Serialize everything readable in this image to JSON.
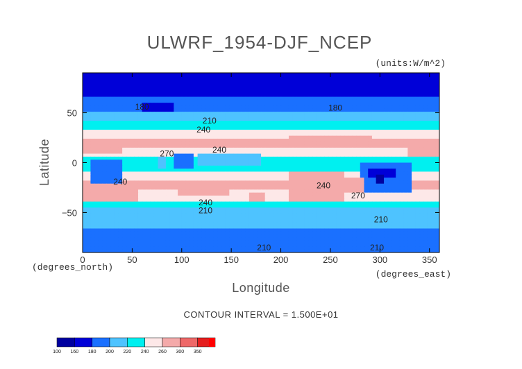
{
  "chart_data": {
    "type": "heatmap",
    "title": "ULWRF_1954-DJF_NCEP",
    "units": "(units:W/m^2)",
    "xlabel": "Longitude",
    "ylabel": "Latitude",
    "xlabel_note": "(degrees_east)",
    "ylabel_note": "(degrees_north)",
    "xlim": [
      0,
      360
    ],
    "ylim": [
      -90,
      90
    ],
    "x_ticks": [
      {
        "value": 0,
        "label": "0"
      },
      {
        "value": 50,
        "label": "50"
      },
      {
        "value": 100,
        "label": "100"
      },
      {
        "value": 150,
        "label": "150"
      },
      {
        "value": 200,
        "label": "200"
      },
      {
        "value": 250,
        "label": "250"
      },
      {
        "value": 300,
        "label": "300"
      },
      {
        "value": 350,
        "label": "350"
      }
    ],
    "y_ticks": [
      {
        "value": 50,
        "label": "50"
      },
      {
        "value": 0,
        "label": "0"
      },
      {
        "value": -50,
        "label": "−50"
      }
    ],
    "contour_interval": "CONTOUR INTERVAL = 1.500E+01",
    "contour_labels": [
      {
        "lon": 60,
        "lat": 56,
        "text": "180"
      },
      {
        "lon": 255,
        "lat": 55,
        "text": "180"
      },
      {
        "lon": 128,
        "lat": 42,
        "text": "210"
      },
      {
        "lon": 122,
        "lat": 33,
        "text": "240"
      },
      {
        "lon": 138,
        "lat": 13,
        "text": "240"
      },
      {
        "lon": 85,
        "lat": 9,
        "text": "270"
      },
      {
        "lon": 38,
        "lat": -19,
        "text": "240"
      },
      {
        "lon": 243,
        "lat": -23,
        "text": "240"
      },
      {
        "lon": 278,
        "lat": -33,
        "text": "270"
      },
      {
        "lon": 124,
        "lat": -40,
        "text": "240"
      },
      {
        "lon": 124,
        "lat": -48,
        "text": "210"
      },
      {
        "lon": 301,
        "lat": -57,
        "text": "210"
      },
      {
        "lon": 183,
        "lat": -85,
        "text": "210"
      },
      {
        "lon": 297,
        "lat": -85,
        "text": "210"
      }
    ],
    "colorbar": {
      "bins": [
        {
          "label": "100",
          "color": "#0000a0"
        },
        {
          "label": "160",
          "color": "#0000d8"
        },
        {
          "label": "180",
          "color": "#1a70ff"
        },
        {
          "label": "200",
          "color": "#4ec3ff"
        },
        {
          "label": "220",
          "color": "#00f0f0"
        },
        {
          "label": "240",
          "color": "#fde8e8"
        },
        {
          "label": "260",
          "color": "#f4aaaa"
        },
        {
          "label": "300",
          "color": "#ee6868"
        },
        {
          "label": "350",
          "color": "#e51e1e"
        }
      ],
      "end_color": "#ff0000"
    },
    "zonal_profile": [
      {
        "lat": 90,
        "v": 160
      },
      {
        "lat": 80,
        "v": 163
      },
      {
        "lat": 72,
        "v": 172
      },
      {
        "lat": 62,
        "v": 185
      },
      {
        "lat": 52,
        "v": 198
      },
      {
        "lat": 44,
        "v": 213
      },
      {
        "lat": 36,
        "v": 233
      },
      {
        "lat": 27,
        "v": 255
      },
      {
        "lat": 20,
        "v": 268
      },
      {
        "lat": 12,
        "v": 258
      },
      {
        "lat": 5,
        "v": 240
      },
      {
        "lat": 0,
        "v": 232
      },
      {
        "lat": -6,
        "v": 236
      },
      {
        "lat": -13,
        "v": 250
      },
      {
        "lat": -20,
        "v": 262
      },
      {
        "lat": -26,
        "v": 262
      },
      {
        "lat": -33,
        "v": 250
      },
      {
        "lat": -40,
        "v": 235
      },
      {
        "lat": -47,
        "v": 216
      },
      {
        "lat": -55,
        "v": 207
      },
      {
        "lat": -63,
        "v": 202
      },
      {
        "lat": -70,
        "v": 196
      },
      {
        "lat": -78,
        "v": 192
      },
      {
        "lat": -85,
        "v": 188
      },
      {
        "lat": -90,
        "v": 186
      }
    ],
    "regional_features": [
      {
        "lon": [
          10,
          40
        ],
        "lat": [
          -22,
          2
        ],
        "v": 190
      },
      {
        "lon": [
          75,
          82
        ],
        "lat": [
          -6,
          6
        ],
        "v": 205
      },
      {
        "lon": [
          92,
          110
        ],
        "lat": [
          -6,
          10
        ],
        "v": 195
      },
      {
        "lon": [
          118,
          180
        ],
        "lat": [
          -4,
          10
        ],
        "v": 208
      },
      {
        "lon": [
          282,
          330
        ],
        "lat": [
          -30,
          0
        ],
        "v": 192
      },
      {
        "lon": [
          288,
          314
        ],
        "lat": [
          -15,
          -5
        ],
        "v": 168
      },
      {
        "lon": [
          298,
          305
        ],
        "lat": [
          -20,
          -12
        ],
        "v": 150
      },
      {
        "lon": [
          60,
          90
        ],
        "lat": [
          50,
          60
        ],
        "v": 165
      },
      {
        "lon": [
          0,
          55
        ],
        "lat": [
          -38,
          -22
        ],
        "v": 280
      },
      {
        "lon": [
          95,
          148
        ],
        "lat": [
          -33,
          -20
        ],
        "v": 290
      },
      {
        "lon": [
          170,
          185
        ],
        "lat": [
          -38,
          -30
        ],
        "v": 280
      },
      {
        "lon": [
          210,
          265
        ],
        "lat": [
          -38,
          -8
        ],
        "v": 282
      },
      {
        "lon": [
          255,
          282
        ],
        "lat": [
          -30,
          -15
        ],
        "v": 295
      },
      {
        "lon": [
          0,
          40
        ],
        "lat": [
          10,
          20
        ],
        "v": 292
      },
      {
        "lon": [
          45,
          100
        ],
        "lat": [
          15,
          25
        ],
        "v": 285
      },
      {
        "lon": [
          210,
          290
        ],
        "lat": [
          18,
          26
        ],
        "v": 280
      },
      {
        "lon": [
          330,
          360
        ],
        "lat": [
          5,
          20
        ],
        "v": 285
      }
    ]
  }
}
